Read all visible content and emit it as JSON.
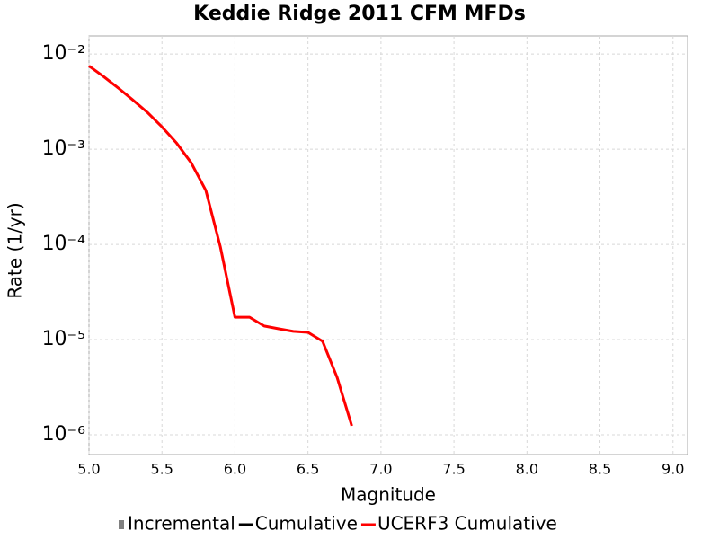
{
  "chart_data": {
    "type": "line",
    "title": "Keddie Ridge 2011 CFM MFDs",
    "x_label": "Magnitude",
    "y_label": "Rate (1/yr)",
    "y_scale": "log",
    "grid": true,
    "legend_position": "bottom",
    "xlim": [
      5,
      9.1
    ],
    "ylim": [
      6.2e-07,
      0.0155
    ],
    "xticks": [
      {
        "value": 5,
        "label": "5.0"
      },
      5.5,
      {
        "value": 6,
        "label": "6.0"
      },
      6.5,
      {
        "value": 7,
        "label": "7.0"
      },
      7.5,
      {
        "value": 8,
        "label": "8.0"
      },
      8.5,
      {
        "value": 9,
        "label": "9.0"
      }
    ],
    "yticks": [
      {
        "value": 0.01,
        "label": "10⁻²"
      },
      {
        "value": 0.001,
        "label": "10⁻³"
      },
      {
        "value": 0.0001,
        "label": "10⁻⁴"
      },
      {
        "value": 1e-05,
        "label": "10⁻⁵"
      },
      {
        "value": 1e-06,
        "label": "10⁻⁶"
      }
    ],
    "x": [
      5.0,
      5.1,
      5.2,
      5.3,
      5.4,
      5.5,
      5.6,
      5.7,
      5.8,
      5.9,
      6.0,
      6.1,
      6.2,
      6.3,
      6.4,
      6.5,
      6.6,
      6.7,
      6.8
    ],
    "series": [
      {
        "name": "Incremental",
        "color": "#808080",
        "symbol": "square",
        "values": [
          null,
          null,
          null,
          null,
          null,
          null,
          null,
          null,
          null,
          null,
          null,
          null,
          null,
          null,
          null,
          null,
          null,
          null,
          null
        ]
      },
      {
        "name": "Cumulative",
        "color": "#000000",
        "symbol": "line",
        "values": [
          null,
          null,
          null,
          null,
          null,
          null,
          null,
          null,
          null,
          null,
          null,
          null,
          null,
          null,
          null,
          null,
          null,
          null,
          null
        ]
      },
      {
        "name": "UCERF3 Cumulative",
        "color": "#ff0000",
        "symbol": "line",
        "values": [
          0.0075,
          0.0058,
          0.0044,
          0.0033,
          0.00244,
          0.00172,
          0.00116,
          0.00072,
          0.00037,
          9.4e-05,
          1.72e-05,
          1.72e-05,
          1.39e-05,
          1.3e-05,
          1.22e-05,
          1.19e-05,
          9.6e-06,
          4e-06,
          1.24e-06
        ]
      }
    ]
  }
}
